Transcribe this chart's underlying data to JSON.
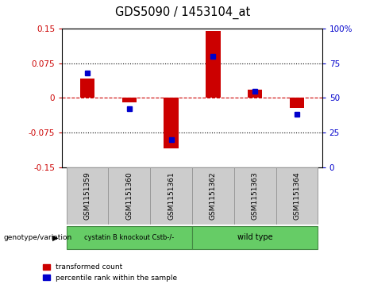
{
  "title": "GDS5090 / 1453104_at",
  "samples": [
    "GSM1151359",
    "GSM1151360",
    "GSM1151361",
    "GSM1151362",
    "GSM1151363",
    "GSM1151364"
  ],
  "red_values": [
    0.042,
    -0.01,
    -0.11,
    0.145,
    0.018,
    -0.022
  ],
  "blue_values": [
    68,
    42,
    20,
    80,
    55,
    38
  ],
  "ylim_left": [
    -0.15,
    0.15
  ],
  "ylim_right": [
    0,
    100
  ],
  "yticks_left": [
    -0.15,
    -0.075,
    0,
    0.075,
    0.15
  ],
  "yticks_right": [
    0,
    25,
    50,
    75,
    100
  ],
  "ytick_labels_left": [
    "-0.15",
    "-0.075",
    "0",
    "0.075",
    "0.15"
  ],
  "ytick_labels_right": [
    "0",
    "25",
    "50",
    "75",
    "100%"
  ],
  "group_label": "genotype/variation",
  "red_color": "#CC0000",
  "blue_color": "#0000CC",
  "red_bar_width": 0.35,
  "legend_red": "transformed count",
  "legend_blue": "percentile rank within the sample",
  "bg_color": "#FFFFFF",
  "plot_bg": "#FFFFFF",
  "group1_label": "cystatin B knockout Cstb-/-",
  "group2_label": "wild type",
  "sample_box_color": "#CCCCCC",
  "group_box_color": "#66CC66"
}
